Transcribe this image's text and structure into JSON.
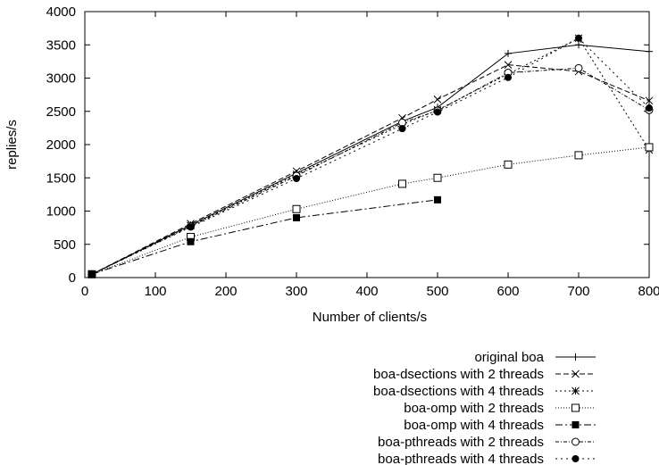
{
  "chart_data": {
    "type": "line",
    "title": "",
    "xlabel": "Number of clients/s",
    "ylabel": "replies/s",
    "xlim": [
      0,
      800
    ],
    "ylim": [
      0,
      4000
    ],
    "xticks": [
      0,
      100,
      200,
      300,
      400,
      500,
      600,
      700,
      800
    ],
    "yticks": [
      0,
      500,
      1000,
      1500,
      2000,
      2500,
      3000,
      3500,
      4000
    ],
    "grid": false,
    "legend_position": "bottom-right, below plot",
    "series": [
      {
        "name": "original boa",
        "marker": "plus",
        "dash": "",
        "x": [
          10,
          150,
          300,
          450,
          500,
          600,
          700,
          800
        ],
        "y": [
          50,
          790,
          1570,
          2350,
          2560,
          3370,
          3500,
          3400
        ]
      },
      {
        "name": "boa-dsections with 2 threads",
        "marker": "cross",
        "dash": "6,3",
        "x": [
          10,
          150,
          300,
          450,
          500,
          600,
          700,
          800
        ],
        "y": [
          50,
          810,
          1600,
          2400,
          2680,
          3200,
          3100,
          2660
        ]
      },
      {
        "name": "boa-dsections with 4 threads",
        "marker": "star",
        "dash": "2,3",
        "x": [
          10,
          150,
          300,
          450,
          500,
          600,
          700,
          800
        ],
        "y": [
          50,
          780,
          1550,
          2300,
          2520,
          3060,
          3600,
          1920
        ]
      },
      {
        "name": "boa-omp with 2 threads",
        "marker": "square-open",
        "dash": "1,2",
        "x": [
          10,
          150,
          300,
          450,
          500,
          600,
          700,
          800
        ],
        "y": [
          50,
          610,
          1030,
          1410,
          1500,
          1700,
          1840,
          1960
        ]
      },
      {
        "name": "boa-omp with 4 threads",
        "marker": "square-filled",
        "dash": "8,3,2,3",
        "x": [
          10,
          150,
          300,
          500
        ],
        "y": [
          50,
          540,
          900,
          1170
        ]
      },
      {
        "name": "boa-pthreads with 2 threads",
        "marker": "circle-open",
        "dash": "4,2,1,2",
        "x": [
          10,
          150,
          300,
          450,
          500,
          600,
          700,
          800
        ],
        "y": [
          50,
          770,
          1530,
          2330,
          2510,
          3080,
          3150,
          2520
        ]
      },
      {
        "name": "boa-pthreads with 4 threads",
        "marker": "circle-filled",
        "dash": "2,4",
        "x": [
          10,
          150,
          300,
          450,
          500,
          600,
          700,
          800
        ],
        "y": [
          50,
          760,
          1490,
          2240,
          2490,
          3010,
          3600,
          2550
        ]
      }
    ]
  }
}
